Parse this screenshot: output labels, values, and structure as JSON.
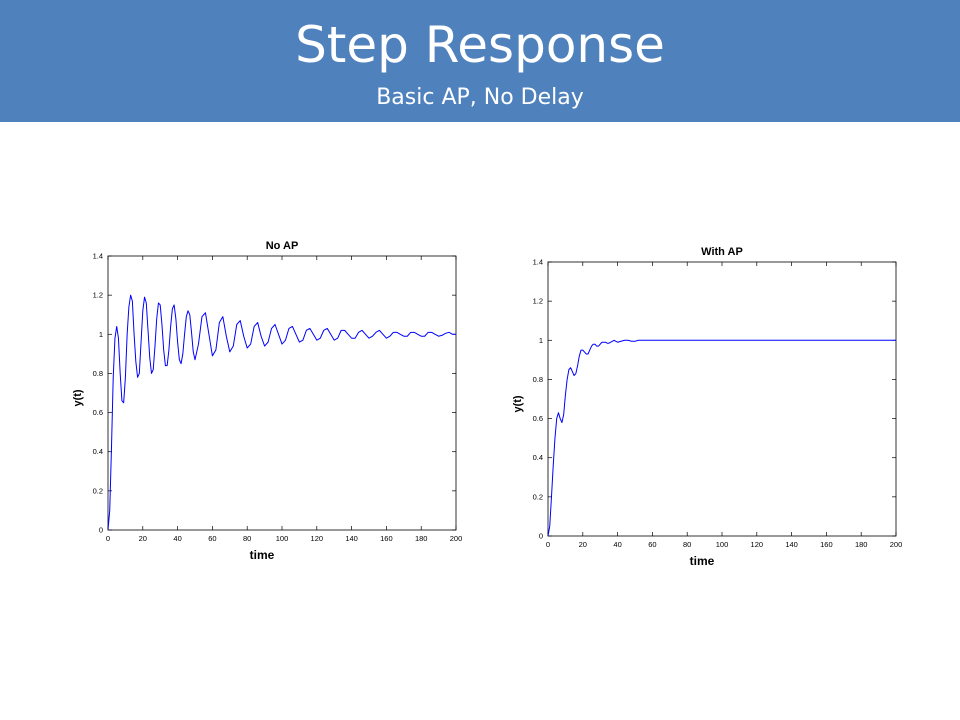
{
  "slide": {
    "title": "Step Response",
    "subtitle": "Basic AP, No Delay"
  },
  "colors": {
    "header_bg": "#4f81bd",
    "line": "#0000ff",
    "header_text": "#ffffff"
  },
  "chart_data": [
    {
      "type": "line",
      "title": "No AP",
      "xlabel": "time",
      "ylabel": "y(t)",
      "xlim": [
        0,
        200
      ],
      "ylim": [
        0,
        1.4
      ],
      "xticks": [
        0,
        20,
        40,
        60,
        80,
        100,
        120,
        140,
        160,
        180,
        200
      ],
      "yticks": [
        0,
        0.2,
        0.4,
        0.6,
        0.8,
        1,
        1.2,
        1.4
      ],
      "xtick_labels": [
        "0",
        "20",
        "40",
        "60",
        "80",
        "100",
        "120",
        "140",
        "160",
        "180",
        "200"
      ],
      "ytick_labels": [
        "0",
        "0.2",
        "0.4",
        "0.6",
        "0.8",
        "1",
        "1.2",
        "1.4"
      ],
      "grid": false,
      "series": [
        {
          "x": [
            0,
            1,
            2,
            3,
            4,
            5,
            6,
            7,
            8,
            9,
            10,
            11,
            12,
            13,
            14,
            15,
            16,
            17,
            18,
            19,
            20,
            21,
            22,
            23,
            24,
            25,
            26,
            27,
            28,
            29,
            30,
            31,
            32,
            33,
            34,
            35,
            36,
            37,
            38,
            39,
            40,
            41,
            42,
            43,
            44,
            45,
            46,
            47,
            48,
            49,
            50,
            52,
            54,
            56,
            58,
            60,
            62,
            64,
            66,
            68,
            70,
            72,
            74,
            76,
            78,
            80,
            82,
            84,
            86,
            88,
            90,
            92,
            94,
            96,
            98,
            100,
            102,
            104,
            106,
            108,
            110,
            112,
            114,
            116,
            118,
            120,
            122,
            124,
            126,
            128,
            130,
            132,
            134,
            136,
            138,
            140,
            142,
            144,
            146,
            148,
            150,
            152,
            154,
            156,
            158,
            160,
            162,
            164,
            166,
            168,
            170,
            172,
            174,
            176,
            178,
            180,
            182,
            184,
            186,
            188,
            190,
            192,
            194,
            196,
            198,
            200
          ],
          "y": [
            0,
            0.1,
            0.42,
            0.78,
            0.98,
            1.04,
            0.98,
            0.8,
            0.66,
            0.65,
            0.78,
            1,
            1.14,
            1.2,
            1.17,
            1,
            0.86,
            0.78,
            0.8,
            0.96,
            1.12,
            1.19,
            1.16,
            1.02,
            0.88,
            0.8,
            0.82,
            0.94,
            1.08,
            1.16,
            1.15,
            1.05,
            0.92,
            0.84,
            0.84,
            0.92,
            1.04,
            1.13,
            1.15,
            1.08,
            0.96,
            0.87,
            0.85,
            0.9,
            1,
            1.09,
            1.12,
            1.1,
            1.01,
            0.91,
            0.87,
            0.95,
            1.09,
            1.11,
            1.0,
            0.89,
            0.92,
            1.06,
            1.09,
            0.99,
            0.91,
            0.94,
            1.05,
            1.07,
            0.99,
            0.93,
            0.95,
            1.04,
            1.06,
            0.99,
            0.94,
            0.96,
            1.03,
            1.05,
            1,
            0.95,
            0.97,
            1.03,
            1.04,
            1,
            0.96,
            0.97,
            1.02,
            1.03,
            1,
            0.97,
            0.98,
            1.02,
            1.03,
            1,
            0.97,
            0.98,
            1.02,
            1.02,
            1,
            0.98,
            0.98,
            1.01,
            1.02,
            1,
            0.98,
            0.99,
            1.01,
            1.02,
            1,
            0.98,
            0.99,
            1.01,
            1.01,
            1,
            0.99,
            0.99,
            1.01,
            1.01,
            1,
            0.99,
            0.99,
            1.01,
            1.01,
            1,
            0.99,
            0.995,
            1.005,
            1.01,
            1,
            1
          ]
        }
      ]
    },
    {
      "type": "line",
      "title": "With AP",
      "xlabel": "time",
      "ylabel": "y(t)",
      "xlim": [
        0,
        200
      ],
      "ylim": [
        0,
        1.4
      ],
      "xticks": [
        0,
        20,
        40,
        60,
        80,
        100,
        120,
        140,
        160,
        180,
        200
      ],
      "yticks": [
        0,
        0.2,
        0.4,
        0.6,
        0.8,
        1,
        1.2,
        1.4
      ],
      "xtick_labels": [
        "0",
        "20",
        "40",
        "60",
        "80",
        "100",
        "120",
        "140",
        "160",
        "180",
        "200"
      ],
      "ytick_labels": [
        "0",
        "0.2",
        "0.4",
        "0.6",
        "0.8",
        "1",
        "1.2",
        "1.4"
      ],
      "grid": false,
      "series": [
        {
          "x": [
            0,
            1,
            2,
            3,
            4,
            5,
            6,
            7,
            8,
            9,
            10,
            11,
            12,
            13,
            14,
            15,
            16,
            17,
            18,
            19,
            20,
            21,
            22,
            23,
            24,
            25,
            26,
            27,
            28,
            29,
            30,
            31,
            32,
            33,
            34,
            35,
            36,
            37,
            38,
            39,
            40,
            42,
            44,
            46,
            48,
            50,
            52,
            54,
            56,
            58,
            60,
            65,
            70,
            80,
            100,
            120,
            140,
            160,
            180,
            200
          ],
          "y": [
            0,
            0.05,
            0.2,
            0.36,
            0.5,
            0.6,
            0.63,
            0.6,
            0.58,
            0.62,
            0.72,
            0.8,
            0.85,
            0.86,
            0.84,
            0.82,
            0.83,
            0.87,
            0.92,
            0.95,
            0.95,
            0.94,
            0.93,
            0.93,
            0.95,
            0.97,
            0.98,
            0.98,
            0.97,
            0.97,
            0.98,
            0.99,
            0.99,
            0.99,
            0.985,
            0.985,
            0.99,
            0.995,
            1.0,
            0.995,
            0.99,
            0.995,
            1.0,
            1.0,
            0.995,
            0.995,
            1.0,
            1.0,
            1.0,
            1.0,
            1.0,
            1.0,
            1.0,
            1.0,
            1.0,
            1.0,
            1.0,
            1.0,
            1.0,
            1.0
          ]
        }
      ]
    }
  ]
}
